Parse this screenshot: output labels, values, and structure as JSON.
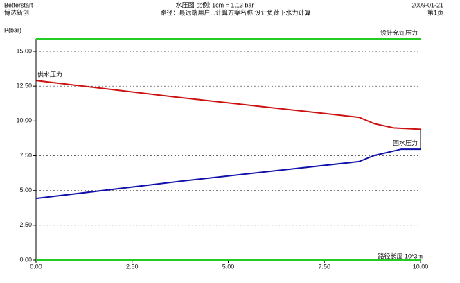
{
  "header": {
    "left": [
      "Betterstart",
      "博达新创"
    ],
    "center": [
      "水压图 比例: 1cm = 1.13 bar",
      "路径：最远端用户...计算方案名称 设计负荷下水力计算"
    ],
    "right": [
      "2009-01-21",
      "第1页"
    ]
  },
  "chart_data": {
    "type": "line",
    "ylabel": "P(bar)",
    "xlabel": "路径长度 10*3m",
    "xlim": [
      0,
      10
    ],
    "ylim": [
      0,
      15.6
    ],
    "xticks": [
      {
        "value": 0,
        "label": "0.00"
      },
      {
        "value": 2.5,
        "label": "2.50"
      },
      {
        "value": 5,
        "label": "5.00"
      },
      {
        "value": 7.5,
        "label": "7.50"
      },
      {
        "value": 10,
        "label": "10.00"
      }
    ],
    "yticks": [
      {
        "value": 0,
        "label": "0.00"
      },
      {
        "value": 2.5,
        "label": "2.50"
      },
      {
        "value": 5,
        "label": "5.00"
      },
      {
        "value": 7.5,
        "label": "7.50"
      },
      {
        "value": 10,
        "label": "10.00"
      },
      {
        "value": 12.5,
        "label": "12.50"
      },
      {
        "value": 15,
        "label": "15.00"
      }
    ],
    "grid": true,
    "series": [
      {
        "name": "设计允许压力",
        "color": "#22cc22",
        "x": [
          0,
          10
        ],
        "values": [
          15.9,
          15.9
        ]
      },
      {
        "name": "供水压力",
        "color": "#cc1111",
        "x": [
          0,
          3.8,
          8.4,
          8.8,
          9.3,
          10
        ],
        "values": [
          12.9,
          11.66,
          10.26,
          9.8,
          9.5,
          9.4
        ]
      },
      {
        "name": "回水压力",
        "color": "#1111aa",
        "x": [
          0,
          3.8,
          8.4,
          8.8,
          9.5,
          10
        ],
        "values": [
          4.43,
          5.68,
          7.08,
          7.52,
          7.97,
          7.97
        ]
      },
      {
        "color": "#22cc22",
        "x": [
          0,
          10
        ],
        "values": [
          0,
          0
        ]
      }
    ]
  }
}
